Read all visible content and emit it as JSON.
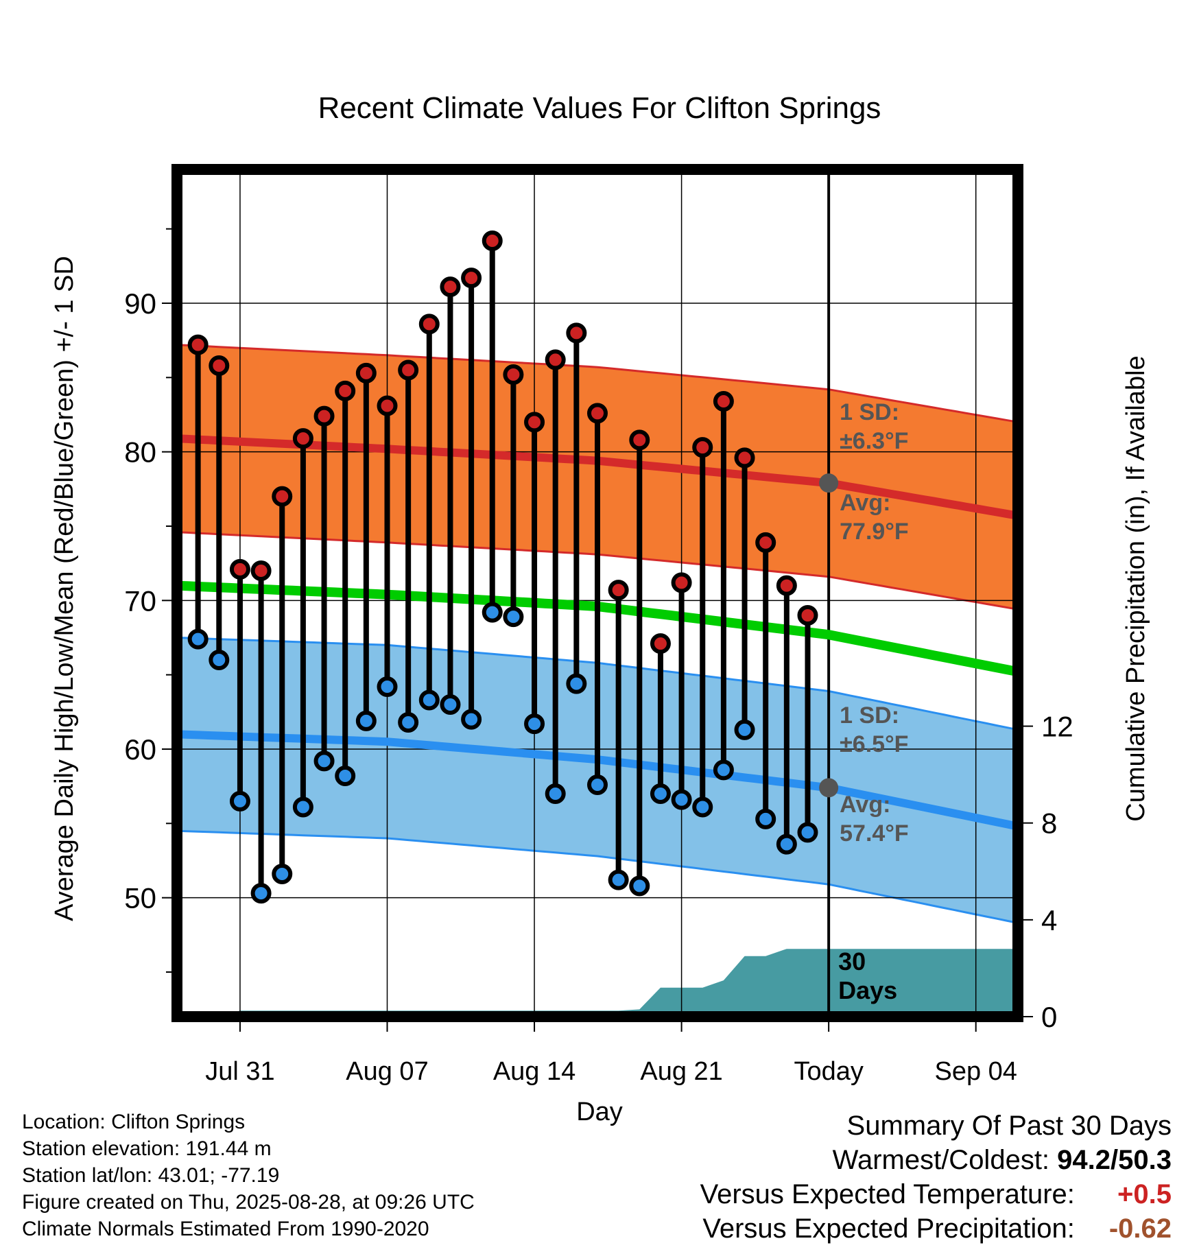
{
  "chart_data": {
    "type": "line",
    "title": "Recent Climate Values For Clifton Springs",
    "xlabel": "Day",
    "ylabel": "Average Daily High/Low/Mean (Red/Blue/Green) +/- 1 SD",
    "y2label": "Cumulative Precipitation (in), If Available",
    "x_dates": [
      "Jul 29",
      "Jul 30",
      "Jul 31",
      "Aug 01",
      "Aug 02",
      "Aug 03",
      "Aug 04",
      "Aug 05",
      "Aug 06",
      "Aug 07",
      "Aug 08",
      "Aug 09",
      "Aug 10",
      "Aug 11",
      "Aug 12",
      "Aug 13",
      "Aug 14",
      "Aug 15",
      "Aug 16",
      "Aug 17",
      "Aug 18",
      "Aug 19",
      "Aug 20",
      "Aug 21",
      "Aug 22",
      "Aug 23",
      "Aug 24",
      "Aug 25",
      "Aug 26",
      "Aug 27"
    ],
    "x_ticks": [
      "Jul 31",
      "Aug 07",
      "Aug 14",
      "Aug 21",
      "Today",
      "Sep 04"
    ],
    "x_tick_dates": [
      "Jul 31",
      "Aug 07",
      "Aug 14",
      "Aug 21",
      "Aug 28",
      "Sep 04"
    ],
    "xlim": [
      "Jul 28",
      "Sep 06"
    ],
    "ylim": [
      42,
      99
    ],
    "y_ticks": [
      50,
      60,
      70,
      80,
      90
    ],
    "y2lim": [
      0,
      35
    ],
    "y2_ticks": [
      0,
      4,
      8,
      12
    ],
    "grid": true,
    "series": [
      {
        "name": "High",
        "color": "#cc2222",
        "values": [
          87.2,
          85.8,
          72.1,
          72.0,
          77.0,
          80.9,
          82.4,
          84.1,
          85.3,
          83.1,
          85.5,
          88.6,
          91.1,
          91.7,
          94.2,
          85.2,
          82.0,
          86.2,
          88.0,
          82.6,
          70.7,
          80.8,
          67.1,
          71.2,
          80.3,
          83.4,
          79.6,
          73.9,
          71.0,
          69.0
        ]
      },
      {
        "name": "Low",
        "color": "#2e8fe6",
        "values": [
          67.4,
          66.0,
          56.5,
          50.3,
          51.6,
          56.1,
          59.2,
          58.2,
          61.9,
          64.2,
          61.8,
          63.3,
          63.0,
          62.0,
          69.2,
          68.9,
          61.7,
          57.0,
          64.4,
          57.6,
          51.2,
          50.8,
          57.0,
          56.6,
          56.1,
          58.6,
          61.3,
          55.3,
          53.6,
          54.4
        ]
      },
      {
        "name": "Cumulative Precipitation",
        "color": "#479ba2",
        "values": [
          0,
          0,
          0.25,
          0.25,
          0.25,
          0.25,
          0.25,
          0.25,
          0.25,
          0.25,
          0.25,
          0.25,
          0.25,
          0.25,
          0.25,
          0.25,
          0.25,
          0.25,
          0.25,
          0.25,
          0.25,
          0.3,
          1.2,
          1.2,
          1.2,
          1.5,
          2.5,
          2.5,
          2.8,
          2.8
        ]
      }
    ],
    "normals": {
      "dates": [
        "Jul 28",
        "Aug 07",
        "Aug 17",
        "Aug 28",
        "Sep 06"
      ],
      "high_avg": [
        80.9,
        80.2,
        79.4,
        77.9,
        75.7
      ],
      "high_sd": 6.3,
      "low_avg": [
        61.0,
        60.5,
        59.3,
        57.4,
        54.8
      ],
      "low_sd": 6.5,
      "mean_avg": [
        71.0,
        70.4,
        69.6,
        67.7,
        65.2
      ]
    },
    "annotations": {
      "high_sd_label": "1 SD:",
      "high_sd_value": "±6.3°F",
      "high_avg_label": "Avg:",
      "high_avg_value": "77.9°F",
      "low_sd_label": "1 SD:",
      "low_sd_value": "±6.5°F",
      "low_avg_label": "Avg:",
      "low_avg_value": "57.4°F",
      "days_label_1": "30",
      "days_label_2": "Days"
    },
    "colors": {
      "high_band": "#f47a30",
      "high_line": "#d42a2a",
      "low_band": "#83c1e8",
      "low_line": "#2a8ff0",
      "mean_line": "#00cc00",
      "precip": "#479ba2",
      "annotation_text": "#555555"
    }
  },
  "meta": {
    "location": "Location: Clifton Springs",
    "elevation": "Station elevation: 191.44 m",
    "latlon": "Station lat/lon: 43.01; -77.19",
    "created": "Figure created on Thu, 2025-08-28, at 09:26 UTC",
    "normals": "Climate Normals Estimated From 1990-2020"
  },
  "summary": {
    "title": "Summary Of Past 30 Days",
    "warm_cold_label": "Warmest/Coldest:",
    "warm_cold_value": "94.2/50.3",
    "temp_label": "Versus Expected Temperature:",
    "temp_value": "+0.5",
    "temp_color": "#cc2222",
    "precip_label": "Versus Expected Precipitation:",
    "precip_value": "-0.62",
    "precip_color": "#a0522d"
  }
}
